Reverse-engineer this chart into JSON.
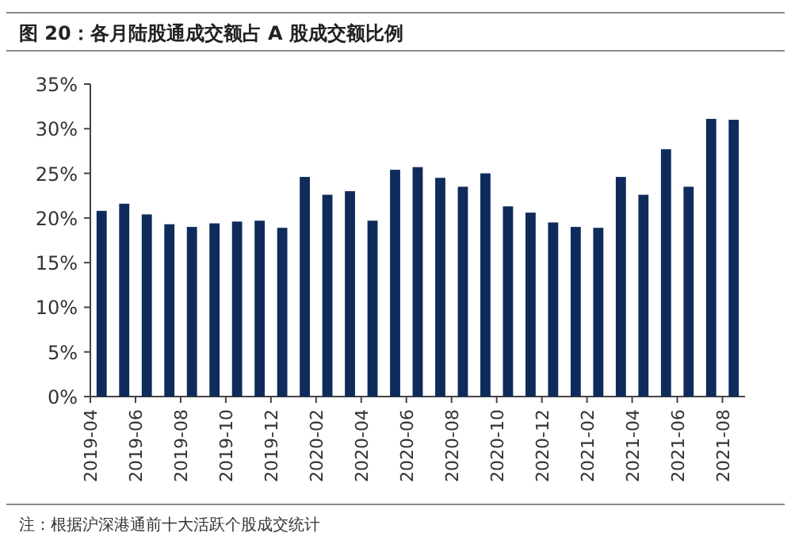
{
  "chart_data": {
    "type": "bar",
    "title": "图 20：各月陆股通成交额占 A 股成交额比例",
    "categories": [
      "2019-04",
      null,
      "2019-06",
      null,
      "2019-08",
      null,
      "2019-10",
      null,
      "2019-12",
      null,
      "2020-02",
      null,
      "2020-04",
      null,
      "2020-06",
      null,
      "2020-08",
      null,
      "2020-10",
      null,
      "2020-12",
      null,
      "2021-02",
      null,
      "2021-04",
      null,
      "2021-06",
      null,
      "2021-08"
    ],
    "values": [
      0.208,
      0.216,
      0.204,
      0.193,
      0.19,
      0.194,
      0.196,
      0.197,
      0.189,
      0.246,
      0.226,
      0.23,
      0.197,
      0.254,
      0.257,
      0.245,
      0.235,
      0.25,
      0.213,
      0.206,
      0.195,
      0.19,
      0.189,
      0.246,
      0.226,
      0.277,
      0.235,
      0.311,
      0.31
    ],
    "color": "#0f2b5b",
    "ylim": [
      0,
      0.35
    ],
    "yticks": [
      {
        "value": 0,
        "label": "0%"
      },
      {
        "value": 0.05,
        "label": "5%"
      },
      {
        "value": 0.1,
        "label": "10%"
      },
      {
        "value": 0.15,
        "label": "15%"
      },
      {
        "value": 0.2,
        "label": "20%"
      },
      {
        "value": 0.25,
        "label": "25%"
      },
      {
        "value": 0.3,
        "label": "30%"
      },
      {
        "value": 0.35,
        "label": "35%"
      }
    ],
    "annotations": [
      "注：根据沪深港通前十大活跃个股成交统计"
    ]
  }
}
